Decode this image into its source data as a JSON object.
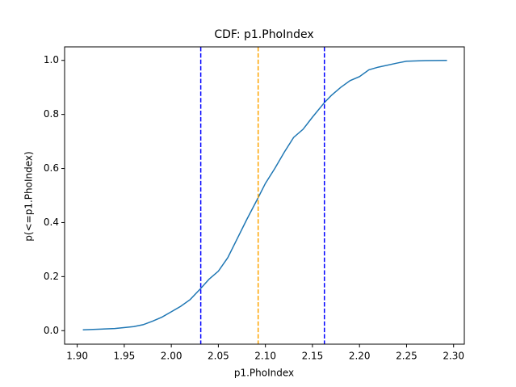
{
  "chart_data": {
    "type": "line",
    "title": "CDF: p1.PhoIndex",
    "x_label": "p1.PhoIndex",
    "y_label": "p(<=p1.PhoIndex)",
    "x": [
      1.906,
      1.94,
      1.96,
      1.97,
      1.98,
      1.99,
      2.0,
      2.01,
      2.02,
      2.031,
      2.04,
      2.05,
      2.06,
      2.07,
      2.08,
      2.092,
      2.1,
      2.11,
      2.12,
      2.13,
      2.14,
      2.15,
      2.163,
      2.17,
      2.18,
      2.19,
      2.2,
      2.21,
      2.22,
      2.24,
      2.25,
      2.27,
      2.293
    ],
    "series": [
      {
        "color": "#1f77b4",
        "values": [
          0.003,
          0.008,
          0.015,
          0.022,
          0.035,
          0.05,
          0.07,
          0.09,
          0.115,
          0.155,
          0.19,
          0.22,
          0.27,
          0.34,
          0.41,
          0.49,
          0.545,
          0.6,
          0.66,
          0.715,
          0.745,
          0.79,
          0.845,
          0.87,
          0.9,
          0.925,
          0.94,
          0.965,
          0.975,
          0.99,
          0.997,
          0.999,
          1.0
        ]
      }
    ],
    "vlines": [
      {
        "x": 2.0313,
        "color": "#0000ff"
      },
      {
        "x": 2.0923,
        "color": "#ffa500"
      },
      {
        "x": 2.1627,
        "color": "#0000ff"
      }
    ],
    "xlim": [
      1.8866,
      2.3114
    ],
    "ylim": [
      -0.05,
      1.05
    ],
    "xticks": [
      {
        "value": 1.9,
        "label": "1.90"
      },
      {
        "value": 1.95,
        "label": "1.95"
      },
      {
        "value": 2.0,
        "label": "2.00"
      },
      {
        "value": 2.05,
        "label": "2.05"
      },
      {
        "value": 2.1,
        "label": "2.10"
      },
      {
        "value": 2.15,
        "label": "2.15"
      },
      {
        "value": 2.2,
        "label": "2.20"
      },
      {
        "value": 2.25,
        "label": "2.25"
      },
      {
        "value": 2.3,
        "label": "2.30"
      }
    ],
    "yticks": [
      {
        "value": 0,
        "label": "0.0"
      },
      {
        "value": 0.2,
        "label": "0.2"
      },
      {
        "value": 0.4,
        "label": "0.4"
      },
      {
        "value": 0.6,
        "label": "0.6"
      },
      {
        "value": 0.8,
        "label": "0.8"
      },
      {
        "value": 1.0,
        "label": "1.0"
      }
    ]
  }
}
